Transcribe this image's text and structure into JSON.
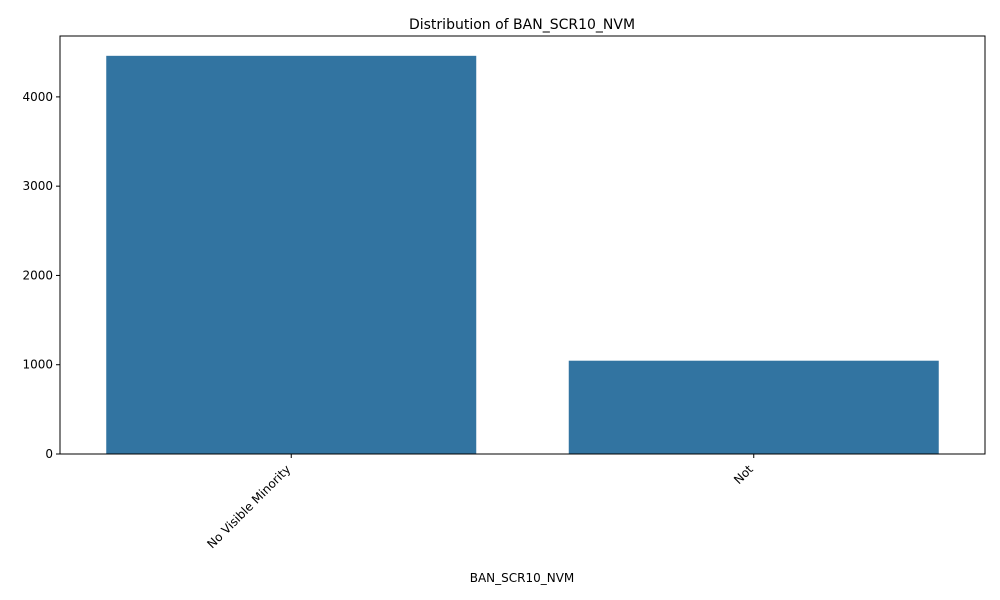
{
  "chart_data": {
    "type": "bar",
    "title": "Distribution of BAN_SCR10_NVM",
    "xlabel": "BAN_SCR10_NVM",
    "ylabel": "",
    "categories": [
      "No Visible Minority",
      "Not"
    ],
    "values": [
      4460,
      1045
    ],
    "ylim": [
      0,
      4682
    ],
    "yticks": [
      0,
      1000,
      2000,
      3000,
      4000
    ],
    "bar_color": "#3274a1",
    "grid": false,
    "x_tick_rotation": "45 degrees, right-aligned"
  }
}
